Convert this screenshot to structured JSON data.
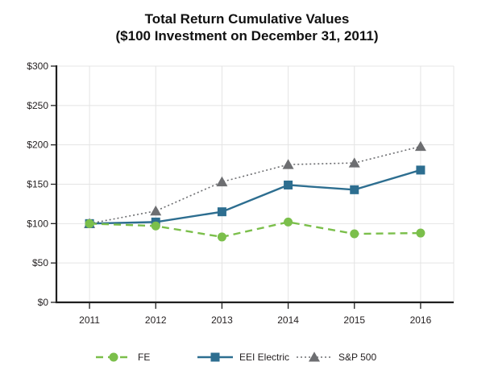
{
  "title": {
    "line1": "Total Return Cumulative Values",
    "line2": "($100 Investment on December 31, 2011)"
  },
  "chart_data": {
    "type": "line",
    "categories": [
      "2011",
      "2012",
      "2013",
      "2014",
      "2015",
      "2016"
    ],
    "series": [
      {
        "name": "FE",
        "values": [
          100,
          97,
          83,
          102,
          87,
          88
        ],
        "color": "#7BBF4B",
        "marker": "circle",
        "line_style": "dashed"
      },
      {
        "name": "EEI Electric",
        "values": [
          100,
          102,
          115,
          149,
          143,
          168
        ],
        "color": "#2D6E90",
        "marker": "square",
        "line_style": "solid"
      },
      {
        "name": "S&P 500",
        "values": [
          100,
          116,
          153,
          175,
          177,
          198
        ],
        "color": "#6D6E71",
        "marker": "triangle",
        "line_style": "dotted"
      }
    ],
    "xlabel": "",
    "ylabel": "",
    "ylim": [
      0,
      300
    ],
    "y_tick_labels": [
      "$0",
      "$50",
      "$100",
      "$150",
      "$200",
      "$250",
      "$300"
    ],
    "grid": true,
    "legend_position": "bottom"
  },
  "colors": {
    "grid": "#E4E4E4",
    "axis": "#1F1F1F",
    "text": "#231F20",
    "background": "#FFFFFF"
  }
}
